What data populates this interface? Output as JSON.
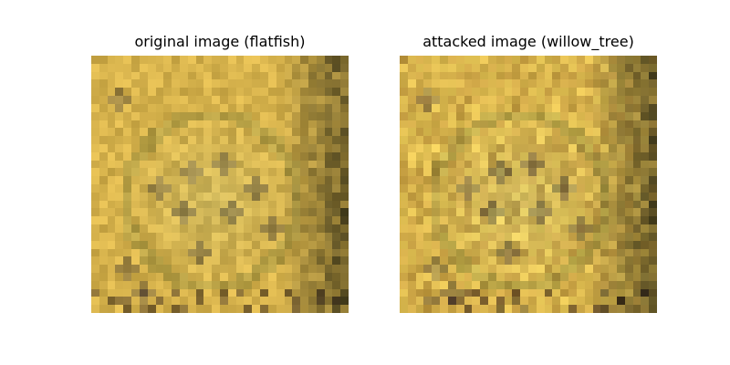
{
  "figure": {
    "panels": [
      {
        "title": "original image (flatfish)"
      },
      {
        "title": "attacked image (willow_tree)"
      }
    ]
  },
  "colors": {
    "background": "#ffffff",
    "title_text": "#000000",
    "gold": "#d8b24a",
    "pale_green": "#c9c27a",
    "dark_olive": "#3a3518",
    "shadow": "#5d5426"
  }
}
